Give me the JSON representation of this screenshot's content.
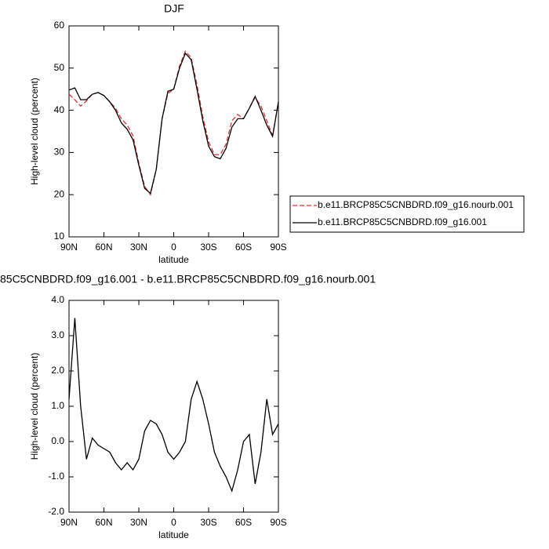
{
  "chart_data": [
    {
      "type": "line",
      "title": "DJF",
      "xlabel": "latitude",
      "ylabel": "High-level cloud (percent)",
      "x": [
        90,
        85,
        80,
        75,
        70,
        65,
        60,
        55,
        50,
        45,
        40,
        35,
        30,
        25,
        20,
        15,
        10,
        5,
        0,
        -5,
        -10,
        -15,
        -20,
        -25,
        -30,
        -35,
        -40,
        -45,
        -50,
        -55,
        -60,
        -65,
        -70,
        -75,
        -80,
        -85,
        -90
      ],
      "series": [
        {
          "name": "b.e11.BRCP85C5CNBDRD.f09_g16.nourb.001",
          "color": "#e03030",
          "dash": true,
          "values": [
            43.8,
            42.5,
            41.0,
            42.2,
            43.8,
            44.2,
            43.5,
            42.0,
            40.5,
            38.0,
            36.5,
            34.0,
            27.5,
            22.0,
            20.0,
            26.0,
            38.0,
            44.0,
            45.0,
            50.5,
            54.0,
            52.5,
            46.0,
            38.5,
            32.5,
            29.5,
            29.5,
            32.0,
            37.5,
            39.0,
            38.0,
            40.5,
            43.0,
            41.0,
            37.5,
            34.0,
            42.0
          ]
        },
        {
          "name": "b.e11.BRCP85C5CNBDRD.f09_g16.001",
          "color": "#000000",
          "dash": false,
          "values": [
            44.8,
            45.3,
            42.5,
            42.5,
            43.8,
            44.2,
            43.5,
            42.0,
            40.0,
            37.0,
            35.5,
            33.0,
            27.0,
            21.5,
            20.3,
            26.0,
            38.0,
            44.5,
            45.0,
            50.0,
            53.5,
            52.0,
            45.0,
            37.5,
            31.5,
            29.0,
            28.5,
            31.0,
            36.0,
            38.0,
            38.0,
            40.5,
            43.3,
            40.0,
            36.5,
            33.8,
            42.0
          ]
        }
      ],
      "xlim": [
        90,
        -90
      ],
      "xticks": [
        {
          "value": 90,
          "label": "90N"
        },
        {
          "value": 60,
          "label": "60N"
        },
        {
          "value": 30,
          "label": "30N"
        },
        0,
        {
          "value": -30,
          "label": "30S"
        },
        {
          "value": -60,
          "label": "60S"
        },
        {
          "value": -90,
          "label": "90S"
        }
      ],
      "ylim": [
        10,
        60
      ],
      "yticks": [
        10,
        20,
        30,
        40,
        50,
        60
      ],
      "grid": false,
      "legend": "right"
    },
    {
      "type": "line",
      "title": "85C5CNBDRD.f09_g16.001 - b.e11.BRCP85C5CNBDRD.f09_g16.nourb.001",
      "xlabel": "latitude",
      "ylabel": "High-level cloud (percent)",
      "x": [
        90,
        85,
        80,
        75,
        70,
        65,
        60,
        55,
        50,
        45,
        40,
        35,
        30,
        25,
        20,
        15,
        10,
        5,
        0,
        -5,
        -10,
        -15,
        -20,
        -25,
        -30,
        -35,
        -40,
        -45,
        -50,
        -55,
        -60,
        -65,
        -70,
        -75,
        -80,
        -85,
        -90
      ],
      "series": [
        {
          "color": "#000000",
          "dash": false,
          "values": [
            1.2,
            3.5,
            1.0,
            -0.5,
            0.1,
            -0.1,
            -0.2,
            -0.3,
            -0.6,
            -0.8,
            -0.6,
            -0.8,
            -0.5,
            0.3,
            0.6,
            0.5,
            0.2,
            -0.3,
            -0.5,
            -0.3,
            0.0,
            1.2,
            1.7,
            1.2,
            0.5,
            -0.3,
            -0.7,
            -1.0,
            -1.4,
            -0.8,
            0.0,
            0.2,
            -1.2,
            -0.3,
            1.2,
            0.2,
            0.5
          ]
        }
      ],
      "xlim": [
        90,
        -90
      ],
      "xticks": [
        {
          "value": 90,
          "label": "90N"
        },
        {
          "value": 60,
          "label": "60N"
        },
        {
          "value": 30,
          "label": "30N"
        },
        0,
        {
          "value": -30,
          "label": "30S"
        },
        {
          "value": -60,
          "label": "60S"
        },
        {
          "value": -90,
          "label": "90S"
        }
      ],
      "ylim": [
        -2,
        4
      ],
      "yticks": [
        {
          "value": -2,
          "label": "-2.0"
        },
        {
          "value": -1,
          "label": "-1.0"
        },
        {
          "value": 0,
          "label": "0.0"
        },
        {
          "value": 1,
          "label": "1.0"
        },
        {
          "value": 2,
          "label": "2.0"
        },
        {
          "value": 3,
          "label": "3.0"
        },
        {
          "value": 4,
          "label": "4.0"
        }
      ],
      "grid": false
    }
  ]
}
